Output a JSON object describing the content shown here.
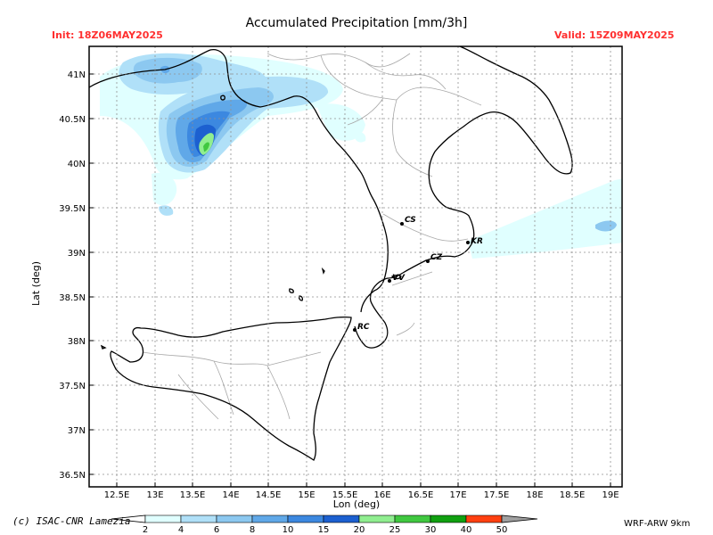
{
  "header": {
    "title": "Accumulated Precipitation [mm/3h]",
    "init": "Init: 18Z06MAY2025",
    "valid": "Valid: 15Z09MAY2025"
  },
  "axes": {
    "xlabel": "Lon (deg)",
    "ylabel": "Lat (deg)",
    "x_ticks": [
      "12.5E",
      "13E",
      "13.5E",
      "14E",
      "14.5E",
      "15E",
      "15.5E",
      "16E",
      "16.5E",
      "17E",
      "17.5E",
      "18E",
      "18.5E",
      "19E"
    ],
    "y_ticks": [
      "41N",
      "40.5N",
      "40N",
      "39.5N",
      "39N",
      "38.5N",
      "38N",
      "37.5N",
      "37N",
      "36.5N"
    ]
  },
  "colorbar": {
    "labels": [
      "2",
      "4",
      "6",
      "8",
      "10",
      "15",
      "20",
      "25",
      "30",
      "40",
      "50"
    ],
    "colors": [
      "#e0ffff",
      "#b0e0f8",
      "#8cc8f0",
      "#60a8e8",
      "#3c88e0",
      "#1c60d0",
      "#90ee90",
      "#40c840",
      "#10a010",
      "#ff4010",
      "#a0a0a0"
    ]
  },
  "cities": [
    {
      "code": "CS",
      "lon": 16.25,
      "lat": 39.3
    },
    {
      "code": "KR",
      "lon": 17.12,
      "lat": 39.08
    },
    {
      "code": "CZ",
      "lon": 16.59,
      "lat": 38.9
    },
    {
      "code": "VV",
      "lon": 16.1,
      "lat": 38.68
    },
    {
      "code": "RC",
      "lon": 15.65,
      "lat": 38.11
    }
  ],
  "footer": {
    "credit": "(c) ISAC-CNR Lamezia",
    "model": "WRF-ARW 9km"
  }
}
